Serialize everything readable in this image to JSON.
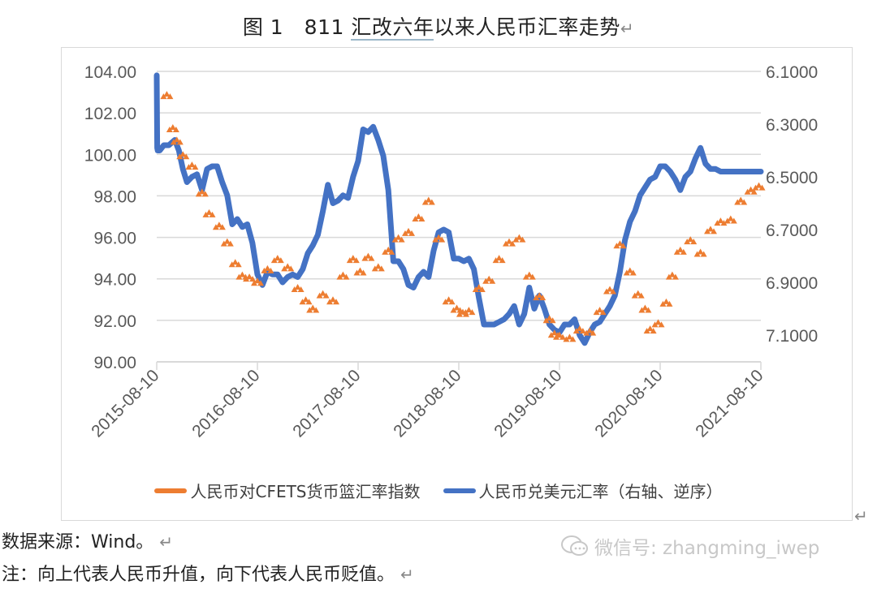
{
  "title": {
    "prefix": "图 1　811 ",
    "underlined": "汇改六年",
    "rest": "以来人民币汇率走势",
    "return_mark": "↵"
  },
  "chart_data": {
    "type": "line",
    "title": "图 1 811汇改六年以来人民币汇率走势",
    "xlabel": "",
    "ylabel_left": "人民币对CFETS货币篮汇率指数",
    "ylabel_right": "人民币兑美元汇率（右轴、逆序）",
    "x_tick_labels": [
      "2015-08-10",
      "2016-08-10",
      "2017-08-10",
      "2018-08-10",
      "2019-08-10",
      "2020-08-10",
      "2021-08-10"
    ],
    "y_left": {
      "ticks": [
        "90.00",
        "92.00",
        "94.00",
        "96.00",
        "98.00",
        "100.00",
        "102.00",
        "104.00"
      ],
      "range": [
        90,
        104
      ]
    },
    "y_right": {
      "ticks": [
        "6.1000",
        "6.3000",
        "6.5000",
        "6.7000",
        "6.9000",
        "7.1000"
      ],
      "range": [
        6.1,
        7.2
      ],
      "reversed": true
    },
    "grid": "horizontal",
    "legend_position": "bottom",
    "series": [
      {
        "name": "人民币对CFETS货币篮汇率指数",
        "axis": "left",
        "style": "triangle-markers",
        "color": "#ED7D31",
        "x": [
          2015.7,
          2015.76,
          2015.8,
          2015.86,
          2015.95,
          2016.05,
          2016.12,
          2016.22,
          2016.3,
          2016.38,
          2016.45,
          2016.52,
          2016.6,
          2016.7,
          2016.8,
          2016.9,
          2017.0,
          2017.08,
          2017.15,
          2017.25,
          2017.35,
          2017.45,
          2017.55,
          2017.62,
          2017.7,
          2017.8,
          2017.9,
          2018.0,
          2018.1,
          2018.2,
          2018.3,
          2018.4,
          2018.5,
          2018.58,
          2018.64,
          2018.7,
          2018.8,
          2018.9,
          2019.0,
          2019.1,
          2019.2,
          2019.3,
          2019.4,
          2019.5,
          2019.55,
          2019.6,
          2019.7,
          2019.8,
          2019.9,
          2020.0,
          2020.1,
          2020.2,
          2020.3,
          2020.38,
          2020.45,
          2020.5,
          2020.58,
          2020.66,
          2020.72,
          2020.8,
          2020.9,
          2021.0,
          2021.1,
          2021.2,
          2021.3,
          2021.4,
          2021.5,
          2021.58
        ],
        "values": [
          102.9,
          101.3,
          100.7,
          100.0,
          99.5,
          98.2,
          97.2,
          96.6,
          95.8,
          94.8,
          94.2,
          94.1,
          93.9,
          94.5,
          95.0,
          94.6,
          93.6,
          93.0,
          92.6,
          93.3,
          93.0,
          94.2,
          95.0,
          94.4,
          95.1,
          94.6,
          95.4,
          96.0,
          96.3,
          97.0,
          97.8,
          96.0,
          93.0,
          92.6,
          92.4,
          92.5,
          93.6,
          94.0,
          95.0,
          95.8,
          96.0,
          94.2,
          93.2,
          92.1,
          91.4,
          91.3,
          91.2,
          91.6,
          91.5,
          92.5,
          93.5,
          95.7,
          94.4,
          93.3,
          92.6,
          91.6,
          91.9,
          92.9,
          94.2,
          95.4,
          95.9,
          95.3,
          96.4,
          96.8,
          96.9,
          97.8,
          98.3,
          98.5
        ]
      },
      {
        "name": "人民币兑美元汇率（右轴、逆序）",
        "axis": "right",
        "style": "thick-line",
        "color": "#4472C4",
        "x": [
          2015.6,
          2015.605,
          2015.61,
          2015.63,
          2015.67,
          2015.72,
          2015.78,
          2015.82,
          2015.86,
          2015.9,
          2015.95,
          2016.0,
          2016.05,
          2016.1,
          2016.15,
          2016.2,
          2016.25,
          2016.3,
          2016.35,
          2016.4,
          2016.45,
          2016.5,
          2016.55,
          2016.6,
          2016.65,
          2016.7,
          2016.75,
          2016.8,
          2016.85,
          2016.9,
          2016.95,
          2017.0,
          2017.05,
          2017.1,
          2017.15,
          2017.2,
          2017.25,
          2017.3,
          2017.35,
          2017.4,
          2017.45,
          2017.5,
          2017.55,
          2017.6,
          2017.65,
          2017.7,
          2017.75,
          2017.8,
          2017.85,
          2017.9,
          2017.95,
          2018.0,
          2018.05,
          2018.1,
          2018.15,
          2018.2,
          2018.25,
          2018.3,
          2018.35,
          2018.4,
          2018.45,
          2018.5,
          2018.55,
          2018.6,
          2018.65,
          2018.7,
          2018.75,
          2018.8,
          2018.85,
          2018.9,
          2018.95,
          2019.0,
          2019.05,
          2019.1,
          2019.15,
          2019.2,
          2019.25,
          2019.3,
          2019.35,
          2019.4,
          2019.45,
          2019.5,
          2019.55,
          2019.6,
          2019.65,
          2019.7,
          2019.75,
          2019.8,
          2019.85,
          2019.9,
          2019.95,
          2020.0,
          2020.05,
          2020.1,
          2020.15,
          2020.2,
          2020.25,
          2020.3,
          2020.35,
          2020.4,
          2020.45,
          2020.5,
          2020.55,
          2020.6,
          2020.65,
          2020.7,
          2020.75,
          2020.8,
          2020.85,
          2020.9,
          2020.95,
          2021.0,
          2021.05,
          2021.1,
          2021.15,
          2021.2,
          2021.25,
          2021.3,
          2021.35,
          2021.4,
          2021.45,
          2021.5,
          2021.55,
          2021.6
        ],
        "values": [
          6.115,
          6.39,
          6.4,
          6.4,
          6.38,
          6.38,
          6.36,
          6.4,
          6.47,
          6.52,
          6.5,
          6.49,
          6.55,
          6.47,
          6.46,
          6.46,
          6.52,
          6.57,
          6.68,
          6.66,
          6.69,
          6.68,
          6.75,
          6.87,
          6.91,
          6.86,
          6.87,
          6.87,
          6.9,
          6.88,
          6.87,
          6.88,
          6.85,
          6.79,
          6.76,
          6.72,
          6.63,
          6.53,
          6.6,
          6.59,
          6.57,
          6.58,
          6.5,
          6.44,
          6.32,
          6.33,
          6.31,
          6.36,
          6.42,
          6.55,
          6.82,
          6.82,
          6.85,
          6.91,
          6.92,
          6.88,
          6.86,
          6.88,
          6.78,
          6.71,
          6.7,
          6.71,
          6.81,
          6.81,
          6.82,
          6.81,
          6.85,
          6.96,
          7.06,
          7.06,
          7.06,
          7.05,
          7.04,
          7.02,
          6.99,
          7.06,
          7.02,
          6.92,
          7.0,
          6.95,
          7.0,
          7.06,
          7.08,
          7.09,
          7.06,
          7.06,
          7.04,
          7.1,
          7.13,
          7.09,
          7.06,
          7.05,
          7.02,
          6.99,
          6.95,
          6.86,
          6.74,
          6.67,
          6.63,
          6.57,
          6.54,
          6.51,
          6.5,
          6.46,
          6.46,
          6.48,
          6.51,
          6.55,
          6.5,
          6.48,
          6.43,
          6.39,
          6.45,
          6.47,
          6.47,
          6.48,
          6.48,
          6.48,
          6.48,
          6.48,
          6.48,
          6.48,
          6.48,
          6.48
        ]
      }
    ]
  },
  "legend": {
    "items": [
      {
        "label": "人民币对CFETS货币篮汇率指数",
        "color": "#ED7D31"
      },
      {
        "label": "人民币兑美元汇率（右轴、逆序）",
        "color": "#4472C4"
      }
    ]
  },
  "notes": {
    "source": "数据来源：Wind。",
    "note": "注：向上代表人民币升值，向下代表人民币贬值。",
    "return_mark": "↵"
  },
  "watermark": {
    "text": "微信号: zhangming_iwep"
  }
}
